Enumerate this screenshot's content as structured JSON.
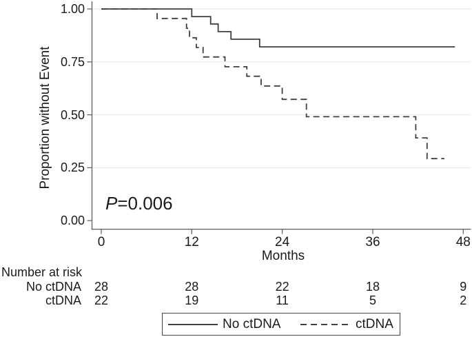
{
  "colors": {
    "curve": "#3f3f3f",
    "axis": "#666666",
    "grid": "#ebebeb",
    "text": "#1a1a1a",
    "legend_border": "#444444",
    "background": "#ffffff"
  },
  "chart_data": {
    "type": "line",
    "subtype": "kaplan-meier-step",
    "title": "",
    "xlabel": "Months",
    "ylabel": "Proportion without Event",
    "xlim": [
      0,
      48
    ],
    "ylim": [
      0.0,
      1.0
    ],
    "xticks": [
      0,
      12,
      24,
      36,
      48
    ],
    "yticks": [
      0,
      0.25,
      0.5,
      0.75,
      1
    ],
    "ytick_labels": [
      "0.00",
      "0.25",
      "0.50",
      "0.75",
      "1.00"
    ],
    "grid": "horizontal light gridlines at 0.25, 0.50, 0.75, 1.00",
    "legend_position": "bottom-center-boxed",
    "annotation": {
      "text": "P=0.006",
      "symbol": "P",
      "rest": "=0.006"
    },
    "series": [
      {
        "name": "No ctDNA",
        "line_style": "solid",
        "color": "#3f3f3f",
        "steps": [
          [
            0,
            1.0
          ],
          [
            12.0,
            0.964
          ],
          [
            14.5,
            0.929
          ],
          [
            15.5,
            0.893
          ],
          [
            17.2,
            0.857
          ],
          [
            21.0,
            0.821
          ]
        ],
        "end_time": 46.9
      },
      {
        "name": "ctDNA",
        "line_style": "dashed",
        "color": "#3f3f3f",
        "steps": [
          [
            0,
            1.0
          ],
          [
            7.4,
            0.955
          ],
          [
            11.3,
            0.909
          ],
          [
            11.7,
            0.864
          ],
          [
            12.6,
            0.818
          ],
          [
            13.5,
            0.773
          ],
          [
            16.4,
            0.727
          ],
          [
            19.3,
            0.682
          ],
          [
            21.2,
            0.636
          ],
          [
            24.0,
            0.573
          ],
          [
            27.2,
            0.491
          ],
          [
            41.7,
            0.391
          ],
          [
            43.2,
            0.293
          ]
        ],
        "end_time": 45.5
      }
    ],
    "risk_table": {
      "title": "Number at risk",
      "times": [
        0,
        12,
        24,
        36,
        48
      ],
      "rows": [
        {
          "label": "No ctDNA",
          "values": [
            "28",
            "28",
            "22",
            "18",
            "9"
          ]
        },
        {
          "label": "ctDNA",
          "values": [
            "22",
            "19",
            "11",
            "5",
            "2"
          ]
        }
      ]
    },
    "legend": [
      {
        "label": "No ctDNA",
        "line_style": "solid"
      },
      {
        "label": "ctDNA",
        "line_style": "dashed"
      }
    ]
  }
}
